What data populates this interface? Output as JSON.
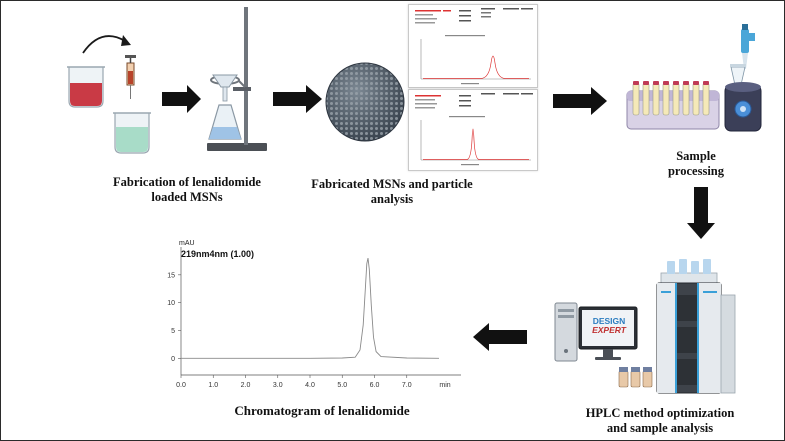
{
  "captions": {
    "fabrication": [
      "Fabrication of lenalidomide",
      "loaded MSNs"
    ],
    "analysis": [
      "Fabricated  MSNs and particle",
      "analysis"
    ],
    "sample": [
      "Sample",
      "processing"
    ],
    "hplc": [
      "HPLC method optimization",
      "and sample analysis"
    ],
    "chromatogram": "Chromatogram of lenalidomide"
  },
  "software_screen": {
    "line1": "DESIGN",
    "line2": "EXPERT"
  },
  "chart_data": {
    "type": "line",
    "title": "219nm4nm (1.00)",
    "ylabel": "mAU",
    "xlabel": "min",
    "xlim": [
      0.0,
      8.0
    ],
    "ylim": [
      -3,
      20
    ],
    "x_ticks": [
      "0.0",
      "1.0",
      "2.0",
      "3.0",
      "4.0",
      "5.0",
      "6.0",
      "7.0",
      "min"
    ],
    "y_ticks": [
      "0",
      "5",
      "10",
      "15"
    ],
    "series": [
      {
        "x": [
          0.0,
          1.0,
          2.0,
          3.0,
          4.0,
          5.0,
          5.4,
          5.55,
          5.65,
          5.72,
          5.76,
          5.8,
          5.84,
          5.9,
          5.97,
          6.05,
          6.2,
          7.0,
          8.0
        ],
        "values": [
          0.0,
          0.0,
          0.0,
          0.0,
          0.0,
          0.05,
          0.2,
          1.5,
          6.0,
          13.0,
          17.0,
          18.0,
          16.0,
          9.5,
          3.8,
          1.2,
          0.3,
          0.05,
          0.0
        ]
      }
    ]
  }
}
